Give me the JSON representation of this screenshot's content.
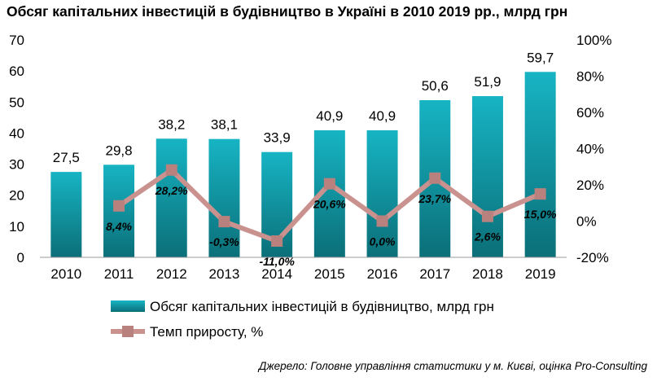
{
  "title": "Обсяг капітальних інвестицій в будівництво в Україні в 2010 2019 рр., млрд грн",
  "source": "Джерело: Головне управління статистики у м. Києві, оцінка Pro-Consulting",
  "chart_data": {
    "type": "bar",
    "title": "Обсяг капітальних інвестицій в будівництво в Україні в 2010 2019 рр., млрд грн",
    "categories": [
      "2010",
      "2011",
      "2012",
      "2013",
      "2014",
      "2015",
      "2016",
      "2017",
      "2018",
      "2019"
    ],
    "series": [
      {
        "name": "Обсяг капітальних інвестицій в будівництво, млрд грн",
        "type": "bar",
        "axis": "left",
        "values": [
          27.5,
          29.8,
          38.2,
          38.1,
          33.9,
          40.9,
          40.9,
          50.6,
          51.9,
          59.7
        ],
        "labels": [
          "27,5",
          "29,8",
          "38,2",
          "38,1",
          "33,9",
          "40,9",
          "40,9",
          "50,6",
          "51,9",
          "59,7"
        ],
        "color": "#1aa3b3"
      },
      {
        "name": "Темп приросту, %",
        "type": "line",
        "axis": "right",
        "values": [
          null,
          8.4,
          28.2,
          -0.3,
          -11.0,
          20.6,
          0.0,
          23.7,
          2.6,
          15.0
        ],
        "labels": [
          "",
          "8,4%",
          "28,2%",
          "-0,3%",
          "-11,0%",
          "20,6%",
          "0,0%",
          "23,7%",
          "2,6%",
          "15,0%"
        ],
        "color": "#c9928f"
      }
    ],
    "y_left": {
      "min": 0,
      "max": 70,
      "ticks": [
        0,
        10,
        20,
        30,
        40,
        50,
        60,
        70
      ]
    },
    "y_right": {
      "min": -20,
      "max": 100,
      "ticks": [
        -20,
        0,
        20,
        40,
        60,
        80,
        100
      ],
      "tick_labels": [
        "-20%",
        "0%",
        "20%",
        "40%",
        "60%",
        "80%",
        "100%"
      ]
    },
    "grid": false,
    "legend": "bottom"
  }
}
